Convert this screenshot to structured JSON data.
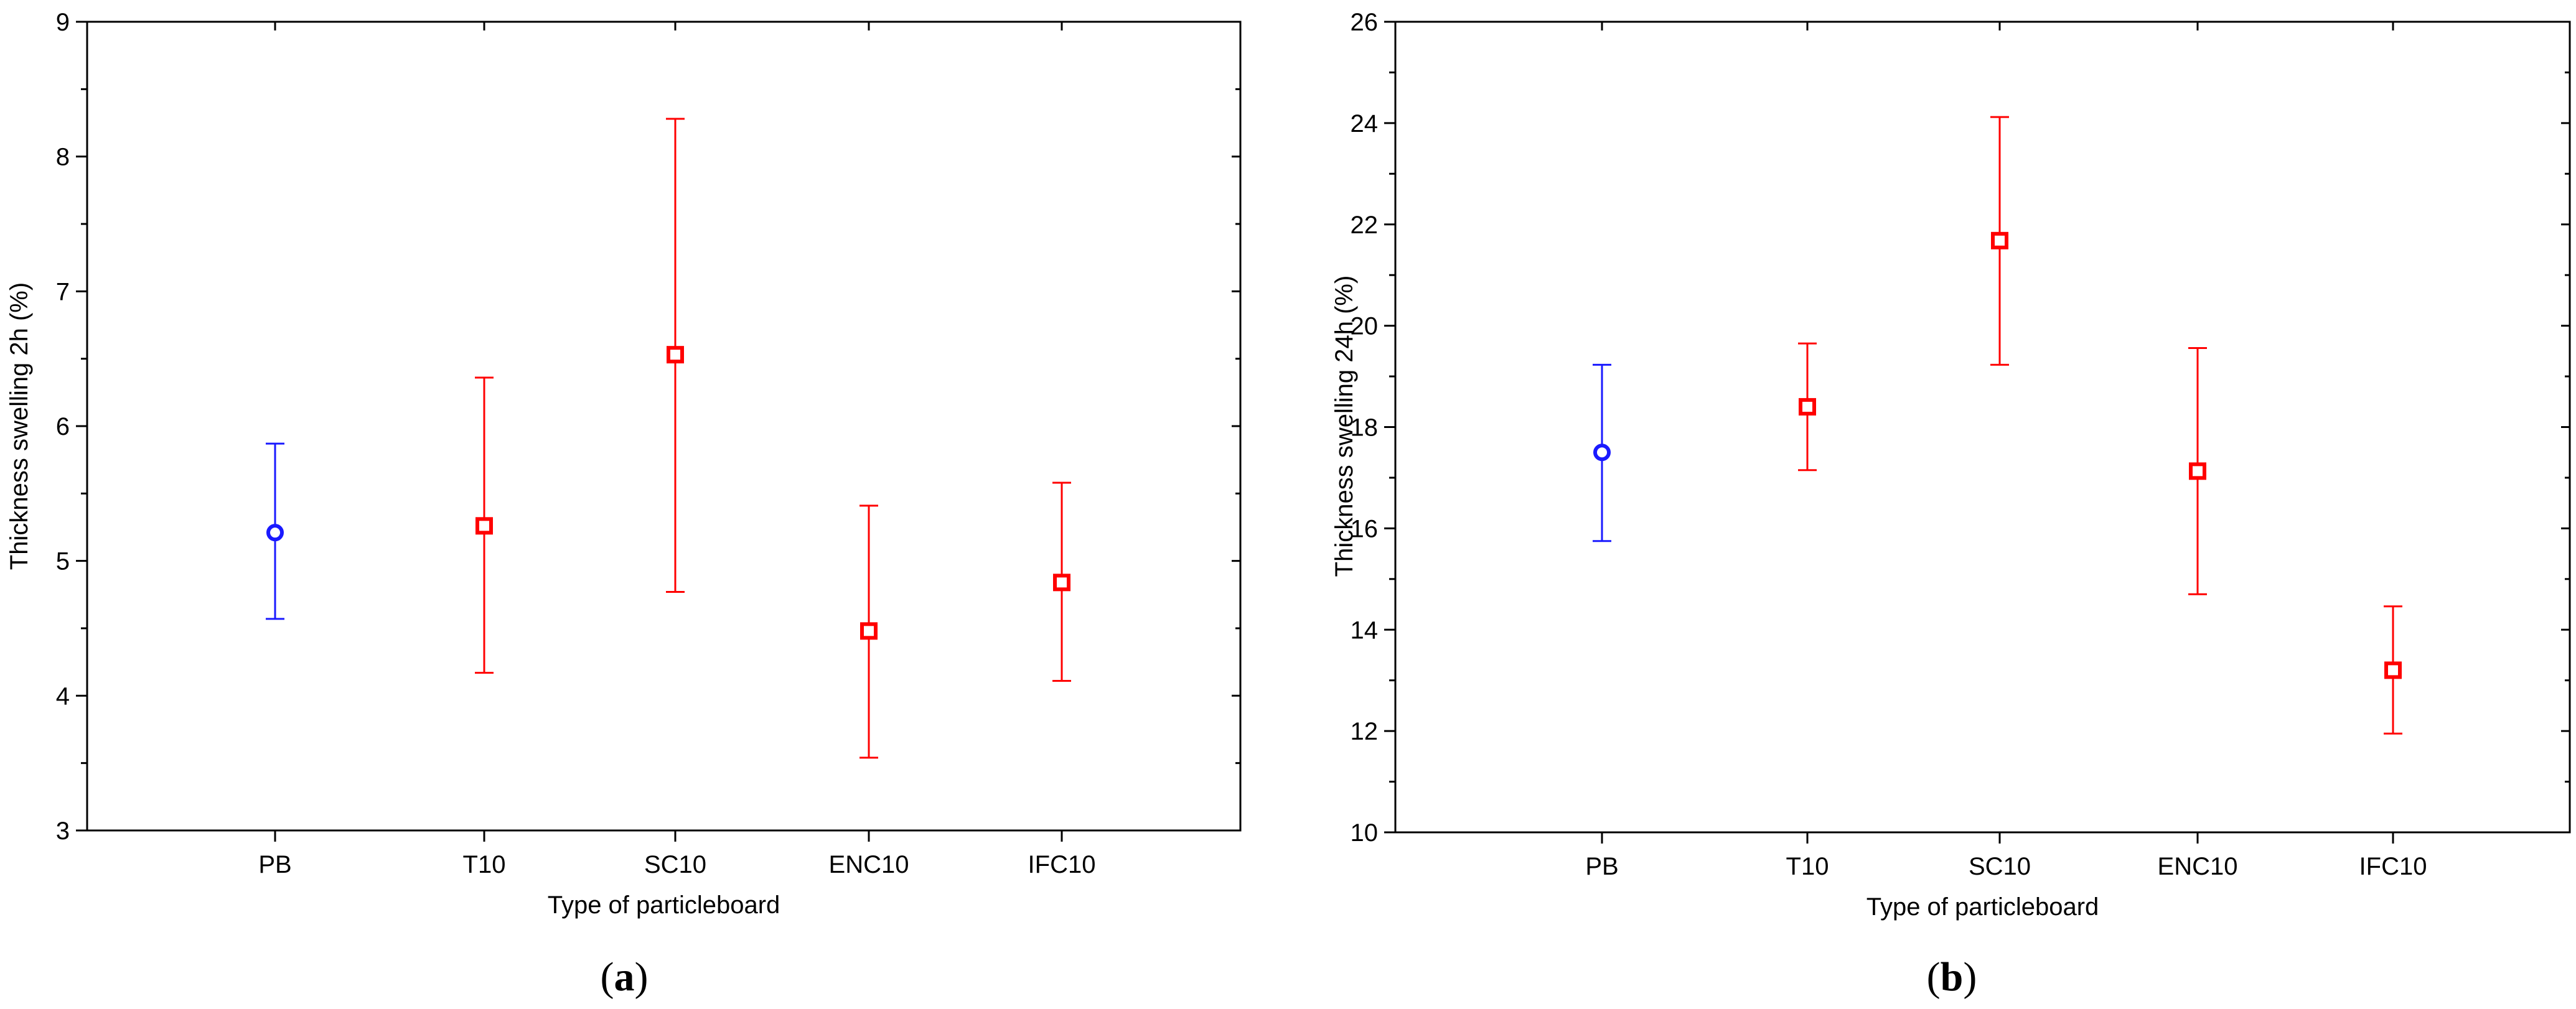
{
  "chart_data": [
    {
      "panel_label": "(a)",
      "panel_letter": "a",
      "type": "scatter",
      "subtype": "mean-with-error-bars",
      "xlabel": "Type of particleboard",
      "ylabel": "Thickness swelling 2h (%)",
      "ylim": [
        3,
        9
      ],
      "yticks": [
        3,
        4,
        5,
        6,
        7,
        8,
        9
      ],
      "categories": [
        "PB",
        "T10",
        "SC10",
        "ENC10",
        "IFC10"
      ],
      "points": [
        {
          "category": "PB",
          "mean": 5.21,
          "lower": 4.57,
          "upper": 5.87,
          "marker": "circle",
          "color": "#1a1aff"
        },
        {
          "category": "T10",
          "mean": 5.26,
          "lower": 4.17,
          "upper": 6.36,
          "marker": "square",
          "color": "#ff0000"
        },
        {
          "category": "SC10",
          "mean": 6.53,
          "lower": 4.77,
          "upper": 8.28,
          "marker": "square",
          "color": "#ff0000"
        },
        {
          "category": "ENC10",
          "mean": 4.48,
          "lower": 3.54,
          "upper": 5.41,
          "marker": "square",
          "color": "#ff0000"
        },
        {
          "category": "IFC10",
          "mean": 4.84,
          "lower": 4.11,
          "upper": 5.58,
          "marker": "square",
          "color": "#ff0000"
        }
      ],
      "grid": false,
      "legend": "none"
    },
    {
      "panel_label": "(b)",
      "panel_letter": "b",
      "type": "scatter",
      "subtype": "mean-with-error-bars",
      "xlabel": "Type of particleboard",
      "ylabel": "Thickness swelling 24h (%)",
      "ylim": [
        10,
        26
      ],
      "yticks": [
        10,
        12,
        14,
        16,
        18,
        20,
        22,
        24,
        26
      ],
      "categories": [
        "PB",
        "T10",
        "SC10",
        "ENC10",
        "IFC10"
      ],
      "points": [
        {
          "category": "PB",
          "mean": 17.5,
          "lower": 15.75,
          "upper": 19.23,
          "marker": "circle",
          "color": "#1a1aff"
        },
        {
          "category": "T10",
          "mean": 18.4,
          "lower": 17.15,
          "upper": 19.65,
          "marker": "square",
          "color": "#ff0000"
        },
        {
          "category": "SC10",
          "mean": 21.68,
          "lower": 19.23,
          "upper": 24.12,
          "marker": "square",
          "color": "#ff0000"
        },
        {
          "category": "ENC10",
          "mean": 17.13,
          "lower": 14.7,
          "upper": 19.56,
          "marker": "square",
          "color": "#ff0000"
        },
        {
          "category": "IFC10",
          "mean": 13.2,
          "lower": 11.95,
          "upper": 14.46,
          "marker": "square",
          "color": "#ff0000"
        }
      ],
      "grid": false,
      "legend": "none"
    }
  ]
}
